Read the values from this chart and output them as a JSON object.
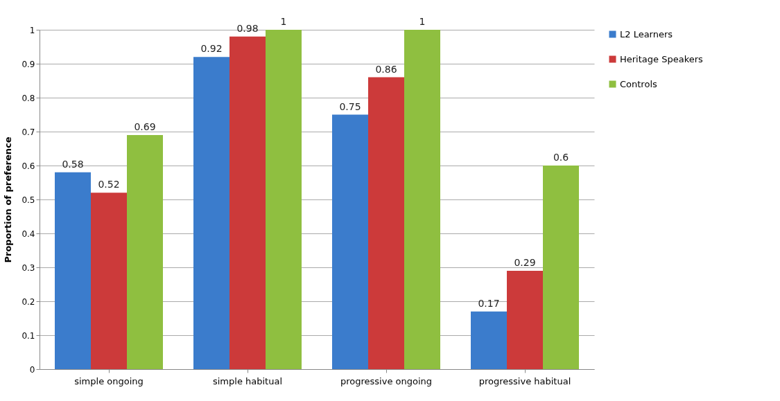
{
  "chart_data": {
    "type": "bar",
    "ylabel": "Proportion of preference",
    "categories": [
      "simple ongoing",
      "simple habitual",
      "progressive ongoing",
      "progressive habitual"
    ],
    "series": [
      {
        "name": "L2 Learners",
        "color": "#3b7ccc",
        "values": [
          0.58,
          0.92,
          0.75,
          0.17
        ]
      },
      {
        "name": "Heritage Speakers",
        "color": "#cc3a3a",
        "values": [
          0.52,
          0.98,
          0.86,
          0.29
        ]
      },
      {
        "name": "Controls",
        "color": "#8fbf40",
        "values": [
          0.69,
          1,
          1,
          0.6
        ]
      }
    ],
    "ylim": [
      0,
      1
    ],
    "yticks": [
      0,
      0.1,
      0.2,
      0.3,
      0.4,
      0.5,
      0.6,
      0.7,
      0.8,
      0.9,
      1
    ],
    "grid": "y",
    "legend": "right",
    "data_labels": true
  }
}
